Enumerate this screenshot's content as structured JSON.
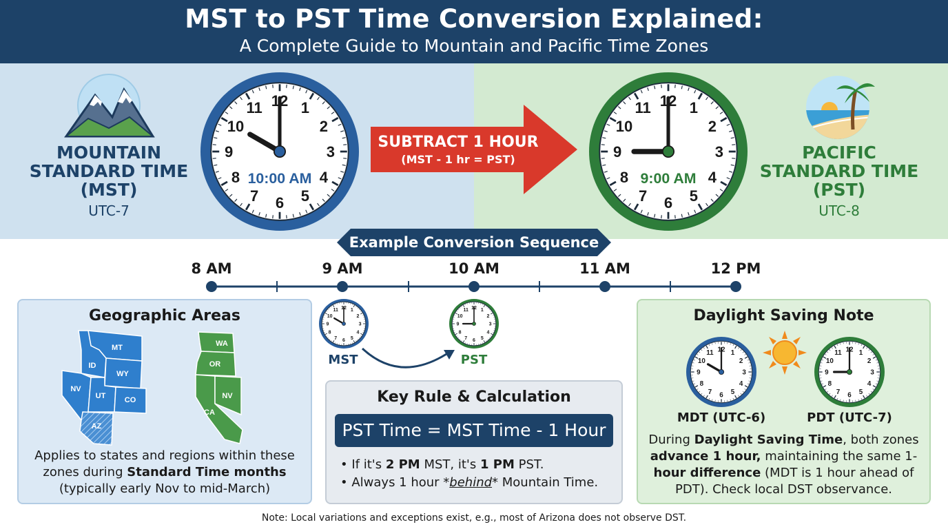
{
  "header": {
    "title": "MST to PST Time Conversion Explained:",
    "subtitle": "A Complete Guide to Mountain and Pacific Time Zones"
  },
  "mst": {
    "label_lines": [
      "MOUNTAIN",
      "STANDARD TIME",
      "(MST)"
    ],
    "utc": "UTC-7",
    "clock_time": "10:00 AM",
    "hour": 10,
    "minute": 0,
    "color": "#2a5f9e"
  },
  "pst": {
    "label_lines": [
      "PACIFIC",
      "STANDARD TIME",
      "(PST)"
    ],
    "utc": "UTC-8",
    "clock_time": "9:00 AM",
    "hour": 9,
    "minute": 0,
    "color": "#2e7d3a"
  },
  "arrow": {
    "line1": "SUBTRACT 1 HOUR",
    "line2": "(MST - 1 hr = PST)",
    "color": "#d9392b"
  },
  "sequence": {
    "title": "Example Conversion Sequence",
    "ticks": [
      "8 AM",
      "9 AM",
      "10 AM",
      "11 AM",
      "12 PM"
    ],
    "mst_label": "MST",
    "pst_label": "PST"
  },
  "geo": {
    "title": "Geographic Areas",
    "mountain_states": [
      "MT",
      "ID",
      "WY",
      "NV",
      "UT",
      "CO",
      "AZ"
    ],
    "pacific_states": [
      "WA",
      "OR",
      "NV",
      "CA"
    ],
    "text_line1": "Applies to states and regions within these",
    "text_line2_pre": "zones during ",
    "text_line2_bold": "Standard Time months",
    "text_line3": "(typically early Nov to mid-March)"
  },
  "rule": {
    "title": "Key Rule & Calculation",
    "formula": "PST Time = MST Time - 1 Hour",
    "b1_pre": "If it's ",
    "b1_b1": "2 PM",
    "b1_mid": " MST, it's ",
    "b1_b2": "1 PM",
    "b1_post": " PST.",
    "b2_pre": "Always 1 hour *",
    "b2_em": "behind",
    "b2_post": "* Mountain Time."
  },
  "dst": {
    "title": "Daylight Saving Note",
    "mdt_label": "MDT (UTC-6)",
    "pdt_label": "PDT (UTC-7)",
    "l1_pre": "During ",
    "l1_bold": "Daylight Saving Time",
    "l1_post": ", both zones",
    "l2_bold": "advance 1 hour,",
    "l2_post": " maintaining the same 1-",
    "l3_bold": "hour difference",
    "l3_post": " (MDT is 1 hour ahead of",
    "l4": "PDT). Check local DST observance."
  },
  "footnote": "Note: Local variations and exceptions exist, e.g., most of Arizona does not observe DST."
}
